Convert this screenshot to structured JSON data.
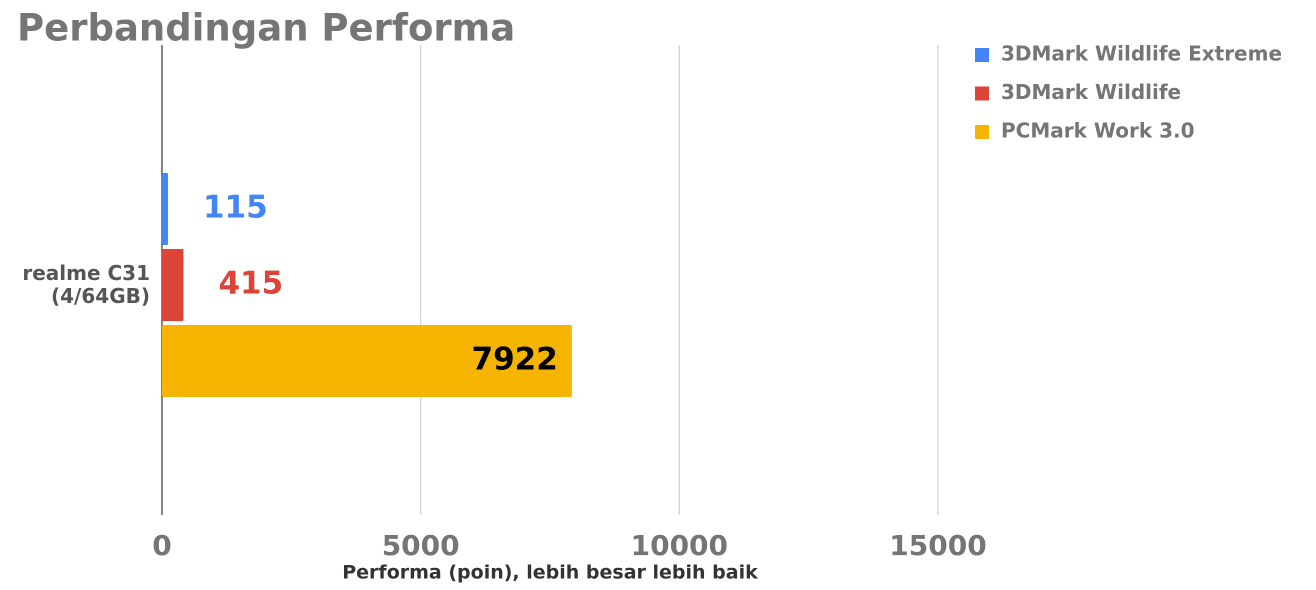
{
  "chart_data": {
    "type": "hbar",
    "title": "Perbandingan Performa",
    "x_label": "Performa (poin), lebih besar lebih baik",
    "categories": [
      "realme C31 (4/64GB)"
    ],
    "series": [
      {
        "name": "3DMark Wildlife Extreme",
        "color": "#4285f4",
        "label_color": "#4285f4",
        "values": [
          115
        ]
      },
      {
        "name": "3DMark Wildlife",
        "color": "#db4437",
        "label_color": "#db4437",
        "values": [
          415
        ]
      },
      {
        "name": "PCMark Work 3.0",
        "color": "#f4b400",
        "label_color": "#000000",
        "values": [
          7922
        ]
      }
    ],
    "xlim": [
      0,
      15000
    ],
    "xticks": [
      0,
      5000,
      10000,
      15000
    ],
    "grid": true,
    "legend": "top-right"
  }
}
